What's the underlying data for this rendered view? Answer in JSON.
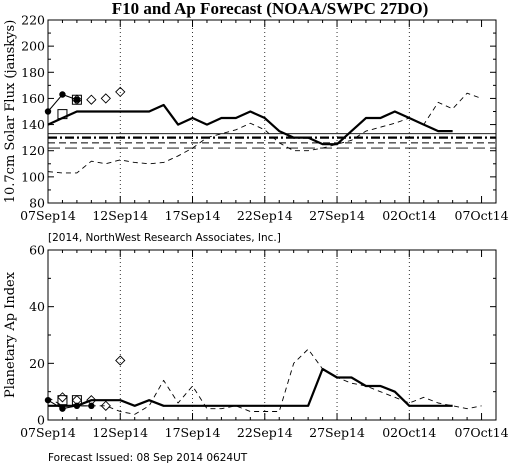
{
  "chart_data": [
    {
      "type": "line",
      "title": "F10 and Ap Forecast (NOAA/SWPC 27DO)",
      "ylabel": "10.7cm Solar Flux (janskys)",
      "xlabel": "",
      "xlim": [
        0,
        31
      ],
      "ylim": [
        80,
        220
      ],
      "yticks": [
        80,
        100,
        120,
        140,
        160,
        180,
        200,
        220
      ],
      "xticks": [
        {
          "day": 0,
          "label": "07Sep14"
        },
        {
          "day": 5,
          "label": "12Sep14"
        },
        {
          "day": 10,
          "label": "17Sep14"
        },
        {
          "day": 15,
          "label": "22Sep14"
        },
        {
          "day": 20,
          "label": "27Sep14"
        },
        {
          "day": 25,
          "label": "02Oct14"
        },
        {
          "day": 30,
          "label": "07Oct14"
        }
      ],
      "vlines": [
        5,
        10,
        15,
        20,
        25
      ],
      "x_unit": "days after 07Sep14",
      "grid": false,
      "legend": "none",
      "series": [
        {
          "style": "thick-solid",
          "x": [
            0,
            1,
            2,
            3,
            4,
            5,
            6,
            7,
            8,
            9,
            10,
            11,
            12,
            13,
            14,
            15,
            16,
            17,
            18,
            19,
            20,
            21,
            22,
            23,
            24,
            25,
            26,
            27,
            28
          ],
          "values": [
            140,
            145,
            150,
            150,
            150,
            150,
            150,
            150,
            155,
            140,
            145,
            140,
            145,
            145,
            150,
            145,
            135,
            130,
            130,
            125,
            125,
            135,
            145,
            145,
            150,
            145,
            140,
            135,
            135
          ]
        },
        {
          "style": "thin-dashed",
          "x": [
            0,
            1,
            2,
            3,
            4,
            5,
            6,
            7,
            8,
            9,
            10,
            11,
            12,
            13,
            14,
            15,
            16,
            17,
            18,
            19,
            20,
            21,
            22,
            23,
            24,
            25,
            26,
            27,
            28,
            29,
            30
          ],
          "values": [
            104,
            103,
            103,
            112,
            110,
            113,
            111,
            110,
            111,
            116,
            122,
            130,
            133,
            136,
            141,
            136,
            126,
            120,
            120,
            122,
            125,
            128,
            135,
            138,
            141,
            145,
            140,
            157,
            152,
            164,
            160
          ]
        },
        {
          "style": "dash-dot",
          "constant": 130
        },
        {
          "style": "dashed",
          "constant": 126
        },
        {
          "style": "long-dashed",
          "constant": 122
        },
        {
          "style": "solid-thin",
          "constant": 133
        },
        {
          "style": "circles-solid",
          "points": [
            [
              0,
              150
            ],
            [
              1,
              163
            ],
            [
              2,
              159
            ]
          ]
        },
        {
          "style": "squares",
          "points": [
            [
              1,
              148
            ],
            [
              2,
              159
            ]
          ]
        },
        {
          "style": "diamonds",
          "points": [
            [
              2,
              159
            ],
            [
              3,
              159
            ],
            [
              4,
              160
            ],
            [
              5,
              165
            ]
          ]
        }
      ]
    },
    {
      "type": "line",
      "title": "",
      "ylabel": "Planetary Ap Index",
      "xlabel": "",
      "xlim": [
        0,
        31
      ],
      "ylim": [
        0,
        60
      ],
      "yticks": [
        0,
        20,
        40,
        60
      ],
      "xticks": [
        {
          "day": 0,
          "label": "07Sep14"
        },
        {
          "day": 5,
          "label": "12Sep14"
        },
        {
          "day": 10,
          "label": "17Sep14"
        },
        {
          "day": 15,
          "label": "22Sep14"
        },
        {
          "day": 20,
          "label": "27Sep14"
        },
        {
          "day": 25,
          "label": "02Oct14"
        },
        {
          "day": 30,
          "label": "07Oct14"
        }
      ],
      "vlines": [
        5,
        10,
        15,
        20,
        25
      ],
      "x_unit": "days after 07Sep14",
      "grid": false,
      "legend": "none",
      "series": [
        {
          "style": "thick-solid",
          "x": [
            0,
            1,
            2,
            3,
            4,
            5,
            6,
            7,
            8,
            9,
            10,
            11,
            12,
            13,
            14,
            15,
            16,
            17,
            18,
            19,
            20,
            21,
            22,
            23,
            24,
            25,
            26,
            27,
            28
          ],
          "values": [
            5,
            5,
            5,
            7,
            7,
            7,
            5,
            7,
            5,
            5,
            5,
            5,
            5,
            5,
            5,
            5,
            5,
            5,
            5,
            18,
            15,
            15,
            12,
            12,
            10,
            5,
            5,
            5,
            5
          ]
        },
        {
          "style": "thin-dashed",
          "x": [
            0,
            1,
            2,
            3,
            4,
            5,
            6,
            7,
            8,
            9,
            10,
            11,
            12,
            13,
            14,
            15,
            16,
            17,
            18,
            19,
            20,
            21,
            22,
            23,
            24,
            25,
            26,
            27,
            28,
            29,
            30
          ],
          "values": [
            8,
            5,
            5,
            5,
            5,
            3,
            2,
            5,
            14,
            6,
            12,
            4,
            4,
            5,
            3,
            3,
            3,
            20,
            25,
            18,
            15,
            13,
            12,
            10,
            8,
            6,
            8,
            6,
            5,
            4,
            5
          ]
        },
        {
          "style": "circles-solid",
          "points": [
            [
              0,
              7
            ],
            [
              1,
              4
            ],
            [
              2,
              5
            ],
            [
              3,
              5
            ]
          ]
        },
        {
          "style": "squares",
          "points": [
            [
              1,
              7
            ],
            [
              2,
              7
            ]
          ]
        },
        {
          "style": "diamonds",
          "points": [
            [
              1,
              8
            ],
            [
              2,
              7
            ],
            [
              3,
              7
            ],
            [
              4,
              5
            ],
            [
              5,
              21
            ]
          ]
        }
      ]
    }
  ],
  "credit": "[2014, NorthWest Research Associates, Inc.]",
  "footer": "Forecast Issued: 08 Sep 2014 0624UT"
}
